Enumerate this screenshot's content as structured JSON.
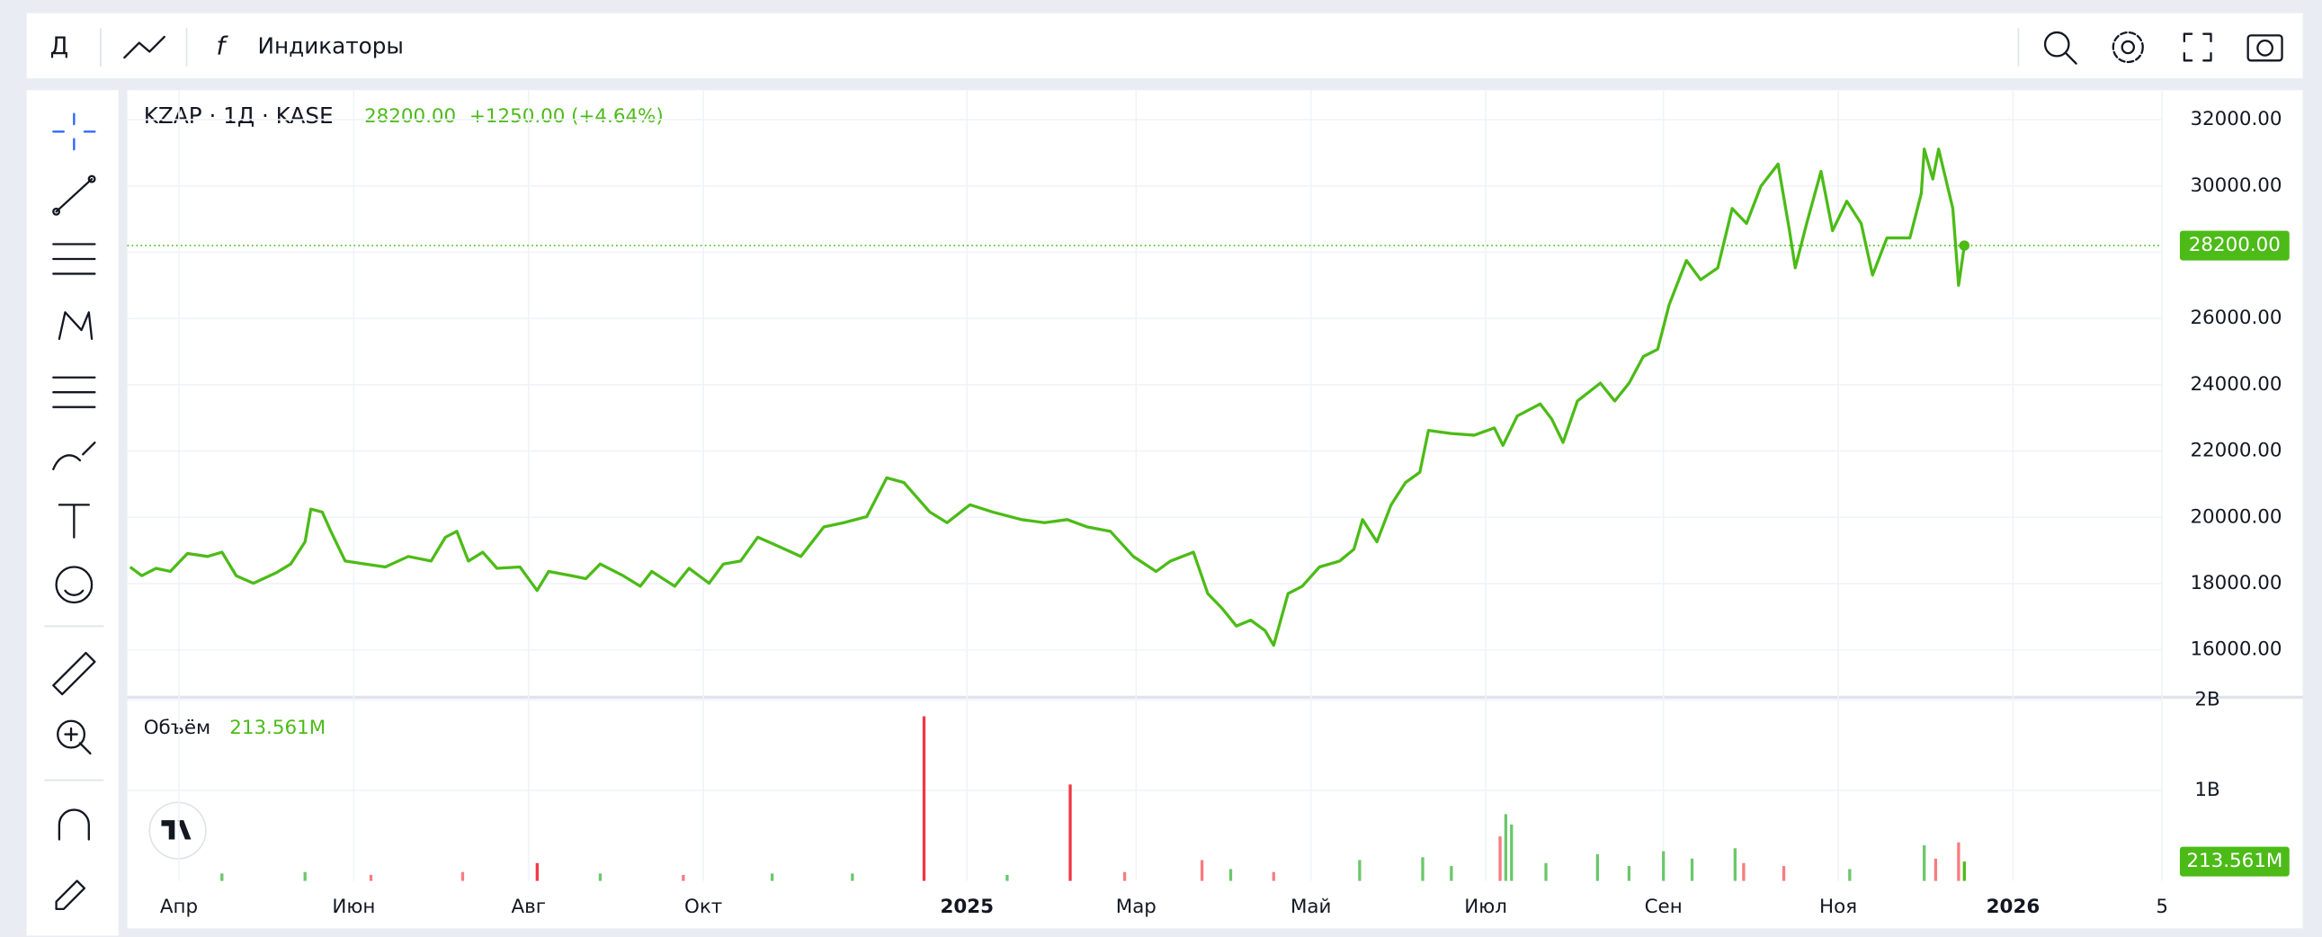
{
  "toolbar": {
    "interval": "Д",
    "indicators": "Индикаторы"
  },
  "chart_data": {
    "type": "line",
    "title": "KZAP · 1Д · KASE",
    "price": "28200.00",
    "change": "+1250.00 (+4.64%)",
    "color": "#4cbb17",
    "x": [
      -17,
      -13,
      -8,
      -3,
      3,
      10,
      15,
      20,
      26,
      34,
      39,
      44,
      46,
      50,
      53,
      58,
      65,
      72,
      80,
      88,
      93,
      97,
      101,
      106,
      111,
      119,
      125,
      129,
      137,
      142,
      147,
      155,
      161,
      165,
      173,
      178,
      185,
      190,
      196,
      202,
      209,
      217,
      225,
      232,
      240,
      247,
      253,
      262,
      268,
      276,
      284,
      294,
      302,
      310,
      317,
      325,
      333,
      341,
      346,
      354,
      359,
      364,
      369,
      374,
      379,
      382,
      387,
      392,
      398,
      405,
      410,
      413,
      418,
      423,
      428,
      433,
      436,
      444,
      452,
      459,
      462,
      467,
      475,
      479,
      483,
      488,
      496,
      501,
      506,
      511,
      516,
      520,
      526,
      531,
      537,
      542,
      547,
      552,
      558,
      562,
      564,
      568,
      573,
      577,
      582,
      587,
      591,
      596,
      604,
      608,
      609,
      612,
      614,
      619,
      621,
      623
    ],
    "values": [
      18500,
      18240,
      18460,
      18370,
      18910,
      18820,
      18950,
      18240,
      18010,
      18330,
      18590,
      19260,
      20250,
      20160,
      19580,
      18680,
      18590,
      18500,
      18820,
      18680,
      19400,
      19580,
      18680,
      18950,
      18460,
      18500,
      17790,
      18370,
      18240,
      18150,
      18590,
      18240,
      17920,
      18370,
      17920,
      18460,
      18010,
      18590,
      18680,
      19400,
      19130,
      18820,
      19710,
      19840,
      20020,
      21190,
      21050,
      20160,
      19840,
      20380,
      20160,
      19930,
      19840,
      19930,
      19710,
      19580,
      18820,
      18370,
      18680,
      18950,
      17700,
      17250,
      16720,
      16900,
      16580,
      16140,
      17700,
      17920,
      18500,
      18680,
      19040,
      19930,
      19260,
      20380,
      21050,
      21360,
      22620,
      22530,
      22480,
      22700,
      22170,
      23060,
      23420,
      22970,
      22260,
      23510,
      24050,
      23510,
      24050,
      24850,
      25070,
      26410,
      27750,
      27170,
      27530,
      29320,
      28870,
      29990,
      30660,
      28650,
      27530,
      28870,
      30440,
      28650,
      29540,
      28870,
      27310,
      28430,
      28430,
      29770,
      31110,
      30210,
      31110,
      29320,
      27000,
      28200
    ],
    "xlim": [
      -18,
      692
    ],
    "xticks": [
      {
        "value": 0,
        "label": "Апр"
      },
      {
        "value": 61,
        "label": "Июн"
      },
      {
        "value": 122,
        "label": "Авг"
      },
      {
        "value": 183,
        "label": "Окт"
      },
      {
        "value": 275,
        "label": "2025"
      },
      {
        "value": 334,
        "label": "Мар"
      },
      {
        "value": 395,
        "label": "Май"
      },
      {
        "value": 456,
        "label": "Июл"
      },
      {
        "value": 518,
        "label": "Сен"
      },
      {
        "value": 579,
        "label": "Ноя"
      },
      {
        "value": 640,
        "label": "2026"
      },
      {
        "value": 692,
        "label": "5"
      }
    ],
    "ylim": [
      14570,
      32890
    ],
    "yticks": [
      {
        "value": 16000,
        "label": "16000.00"
      },
      {
        "value": 18000,
        "label": "18000.00"
      },
      {
        "value": 20000,
        "label": "20000.00"
      },
      {
        "value": 22000,
        "label": "22000.00"
      },
      {
        "value": 24000,
        "label": "24000.00"
      },
      {
        "value": 26000,
        "label": "26000.00"
      },
      {
        "value": 28000,
        "label": "28000.00"
      },
      {
        "value": 30000,
        "label": "30000.00"
      },
      {
        "value": 32000,
        "label": "32000.00"
      }
    ],
    "grid": true,
    "volume": {
      "type": "bar",
      "title": "Объём",
      "value_label": "213.561M",
      "x": [
        15,
        44,
        67,
        99,
        125,
        147,
        176,
        207,
        235,
        260,
        289,
        311,
        330,
        357,
        367,
        382,
        412,
        434,
        444,
        461,
        463,
        465,
        477,
        495,
        506,
        518,
        528,
        543,
        546,
        560,
        583,
        609,
        613,
        621,
        623
      ],
      "values": [
        82000000,
        98000000,
        66000000,
        98000000,
        197000000,
        82000000,
        66000000,
        82000000,
        82000000,
        1820000000,
        66000000,
        1066000000,
        98000000,
        230000000,
        131000000,
        98000000,
        230000000,
        262000000,
        164000000,
        492000000,
        738000000,
        623000000,
        197000000,
        295000000,
        164000000,
        328000000,
        246000000,
        361000000,
        197000000,
        164000000,
        131000000,
        393000000,
        246000000,
        426000000,
        213561000
      ],
      "colors": [
        "#6cc76c",
        "#6cc76c",
        "#f77c80",
        "#f77c80",
        "#f23645",
        "#6cc76c",
        "#f77c80",
        "#6cc76c",
        "#6cc76c",
        "#f23645",
        "#6cc76c",
        "#f23645",
        "#f77c80",
        "#f77c80",
        "#6cc76c",
        "#f77c80",
        "#6cc76c",
        "#6cc76c",
        "#6cc76c",
        "#f77c80",
        "#6cc76c",
        "#6cc76c",
        "#6cc76c",
        "#6cc76c",
        "#6cc76c",
        "#6cc76c",
        "#6cc76c",
        "#6cc76c",
        "#f77c80",
        "#f77c80",
        "#6cc76c",
        "#6cc76c",
        "#f77c80",
        "#f77c80",
        "#4cbb17"
      ],
      "ylim": [
        0,
        2030000000
      ],
      "yticks": [
        {
          "value": 1000000000,
          "label": "1B"
        },
        {
          "value": 2000000000,
          "label": "2B"
        }
      ]
    }
  }
}
